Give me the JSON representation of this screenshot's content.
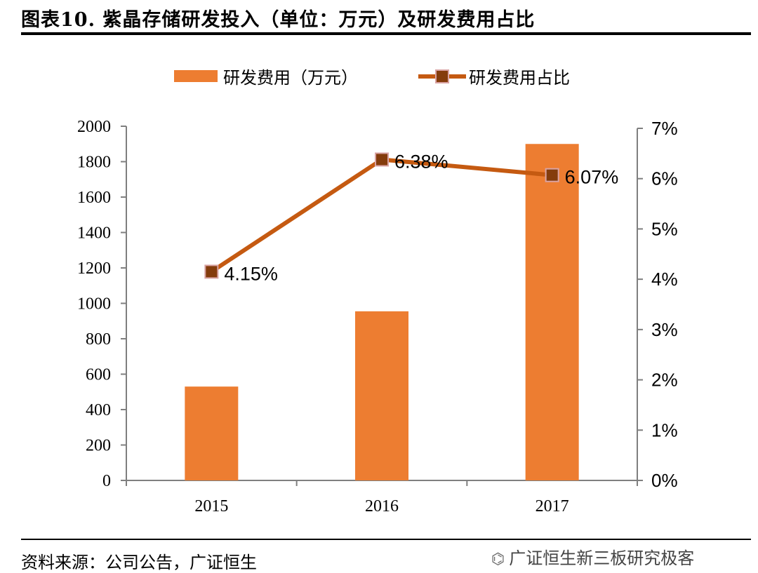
{
  "figure": {
    "title": "图表10.  紫晶存储研发投入（单位：万元）及研发费用占比",
    "source": "资料来源：公司公告，广证恒生",
    "watermark": "广证恒生新三板研究极客",
    "watermark_icon": "wechat-icon"
  },
  "colors": {
    "bar": "#ED7D31",
    "line": "#C55A11",
    "marker_fill": "#843C0C",
    "marker_edge": "#D9A3A3",
    "axis": "#7F7F7F"
  },
  "chart_data": {
    "type": "bar",
    "categories": [
      "2015",
      "2016",
      "2017"
    ],
    "series": [
      {
        "name": "研发费用（万元）",
        "type": "bar",
        "axis": "left",
        "values": [
          530,
          955,
          1900
        ]
      },
      {
        "name": "研发费用占比",
        "type": "line",
        "axis": "right",
        "values": [
          4.15,
          6.38,
          6.07
        ],
        "labels": [
          "4.15%",
          "6.38%",
          "6.07%"
        ]
      }
    ],
    "y_left": {
      "min": 0,
      "max": 2000,
      "ticks": [
        "0",
        "200",
        "400",
        "600",
        "800",
        "1000",
        "1200",
        "1400",
        "1600",
        "1800",
        "2000"
      ]
    },
    "y_right": {
      "min": 0,
      "max": 7,
      "ticks": [
        "0%",
        "1%",
        "2%",
        "3%",
        "4%",
        "5%",
        "6%",
        "7%"
      ]
    },
    "legend": {
      "placement": "top",
      "entries": [
        "研发费用（万元）",
        "研发费用占比"
      ]
    },
    "grid": false
  }
}
